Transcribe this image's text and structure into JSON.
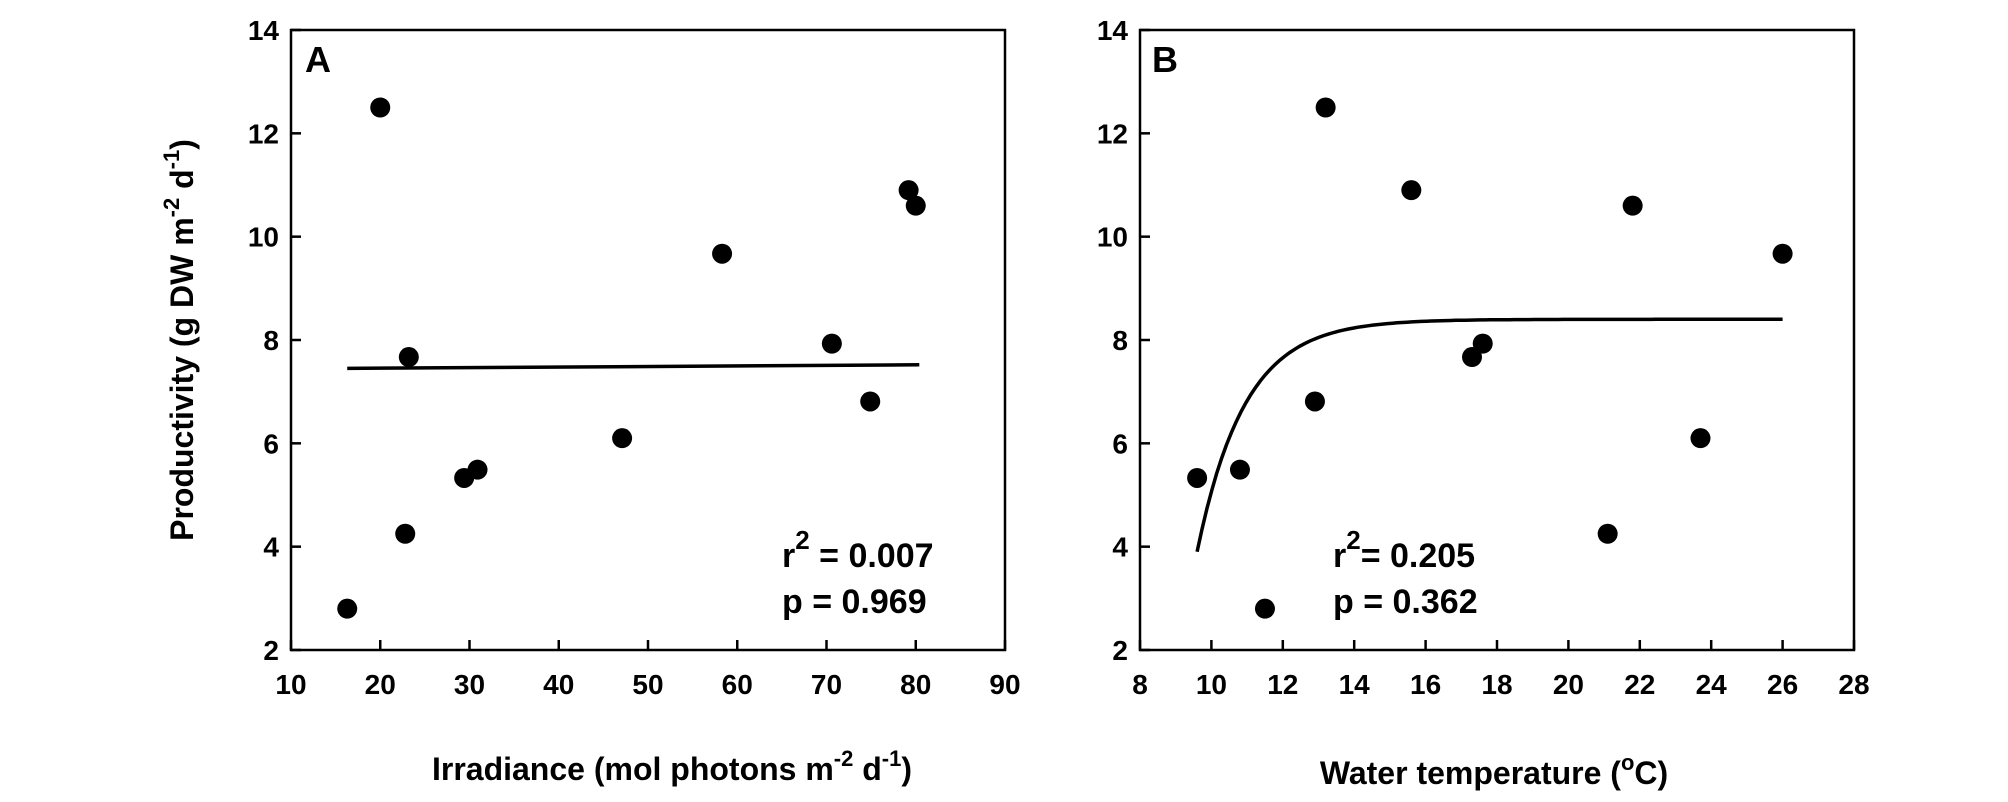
{
  "chart_data": [
    {
      "type": "scatter",
      "panel_label": "A",
      "xlabel_main": "Irradiance (mol photons m",
      "xlabel_sup1": "-2",
      "xlabel_mid": " d",
      "xlabel_sup2": "-1",
      "xlabel_end": ")",
      "ylabel_main": "Productivity (g DW m",
      "ylabel_sup1": "-2",
      "ylabel_mid": " d",
      "ylabel_sup2": "-1",
      "ylabel_end": ")",
      "xlim": [
        10,
        90
      ],
      "ylim": [
        2,
        14
      ],
      "xticks": [
        10,
        20,
        30,
        40,
        50,
        60,
        70,
        80,
        90
      ],
      "yticks": [
        2,
        4,
        6,
        8,
        10,
        12,
        14
      ],
      "points": [
        {
          "x": 16.3,
          "y": 2.8
        },
        {
          "x": 20.0,
          "y": 12.5
        },
        {
          "x": 22.8,
          "y": 4.25
        },
        {
          "x": 23.2,
          "y": 7.67
        },
        {
          "x": 29.4,
          "y": 5.33
        },
        {
          "x": 30.9,
          "y": 5.49
        },
        {
          "x": 47.1,
          "y": 6.1
        },
        {
          "x": 58.3,
          "y": 9.67
        },
        {
          "x": 70.6,
          "y": 7.93
        },
        {
          "x": 74.9,
          "y": 6.81
        },
        {
          "x": 79.2,
          "y": 10.9
        },
        {
          "x": 80.0,
          "y": 10.6
        }
      ],
      "fit_line": [
        {
          "x": 16.3,
          "y": 7.45
        },
        {
          "x": 80.4,
          "y": 7.52
        }
      ],
      "stat_r_prefix": "r",
      "stat_r_sup": "2",
      "stat_r_value": " = 0.007",
      "stat_p": "p = 0.969"
    },
    {
      "type": "scatter",
      "panel_label": "B",
      "xlabel_main": "Water temperature (",
      "xlabel_sup1": "o",
      "xlabel_end": "C)",
      "xlim": [
        8,
        28
      ],
      "ylim": [
        2,
        14
      ],
      "xticks": [
        8,
        10,
        12,
        14,
        16,
        18,
        20,
        22,
        24,
        26,
        28
      ],
      "yticks": [
        2,
        4,
        6,
        8,
        10,
        12,
        14
      ],
      "points": [
        {
          "x": 9.6,
          "y": 5.33
        },
        {
          "x": 10.8,
          "y": 5.49
        },
        {
          "x": 11.5,
          "y": 2.8
        },
        {
          "x": 12.9,
          "y": 6.81
        },
        {
          "x": 13.2,
          "y": 12.5
        },
        {
          "x": 15.6,
          "y": 10.9
        },
        {
          "x": 17.3,
          "y": 7.67
        },
        {
          "x": 17.6,
          "y": 7.93
        },
        {
          "x": 21.1,
          "y": 4.25
        },
        {
          "x": 21.8,
          "y": 10.6
        },
        {
          "x": 23.7,
          "y": 6.1
        },
        {
          "x": 26.0,
          "y": 9.67
        }
      ],
      "fit_curve": {
        "model": "exponential_rise",
        "asymptote": 8.4,
        "x0": 9.6,
        "y0": 3.9,
        "rate": 0.75,
        "x_end": 26.0
      },
      "stat_r_prefix": "r",
      "stat_r_sup": "2",
      "stat_r_value": "= 0.205",
      "stat_p": "p = 0.362"
    }
  ]
}
